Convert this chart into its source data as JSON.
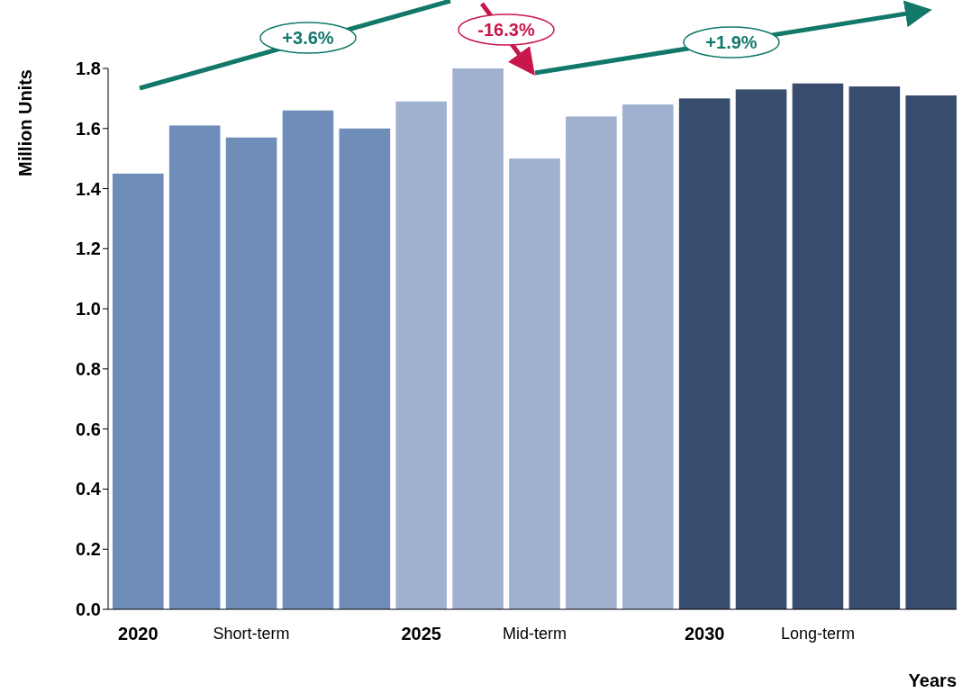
{
  "chart_data": {
    "type": "bar",
    "xlabel": "Years",
    "ylabel": "Million Units",
    "categories": [
      "2020",
      null,
      null,
      null,
      null,
      "2025",
      null,
      null,
      null,
      null,
      "2030",
      null,
      null,
      null,
      null
    ],
    "values": [
      1.45,
      1.61,
      1.57,
      1.66,
      1.6,
      1.69,
      1.8,
      1.5,
      1.64,
      1.68,
      1.7,
      1.73,
      1.75,
      1.74,
      1.71
    ],
    "colors": [
      "#6f8db9",
      "#6f8db9",
      "#6f8db9",
      "#6f8db9",
      "#6f8db9",
      "#9fb1cf",
      "#9fb1cf",
      "#9fb1cf",
      "#9fb1cf",
      "#9fb1cf",
      "#384c6d",
      "#384c6d",
      "#384c6d",
      "#384c6d",
      "#384c6d"
    ],
    "ylim": [
      0,
      1.8
    ],
    "yticks": [
      {
        "value": 0,
        "label": "0.0"
      },
      0.2,
      0.4,
      0.6,
      0.8,
      {
        "value": 1,
        "label": "1.0"
      },
      1.2,
      1.4,
      1.6,
      1.8
    ],
    "annotations": [
      "+3.6%",
      "-16.3%",
      "+1.9%",
      "Short-term",
      "Mid-term",
      "Long-term"
    ]
  }
}
